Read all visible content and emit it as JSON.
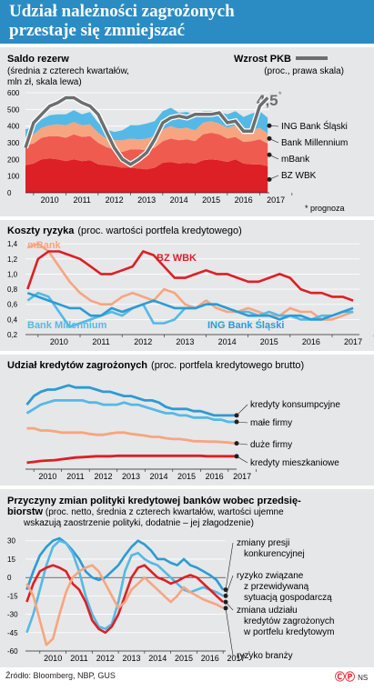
{
  "title_line1": "Udział należności zagrożonych",
  "title_line2": "przestaje się zmniejszać",
  "source": "Źródło: Bloomberg, NBP, GUS",
  "brand_icon": "cp-copyright-icon",
  "brand_suffix": "NS",
  "chart_data": [
    {
      "type": "area",
      "title": "Saldo rezerw",
      "subtitle_line1": "(średnia z czterech kwartałów,",
      "subtitle_line2": "mln zł, skala lewa)",
      "right_title": "Wzrost PKB",
      "right_subtitle": "(proc., prawa skala)",
      "annotation": "4,5",
      "annotation_mark": "*",
      "footnote": "* prognoza",
      "x_ticks": [
        "2010",
        "2011",
        "2012",
        "2013",
        "2014",
        "2015",
        "2016",
        "2017"
      ],
      "y_ticks": [
        0,
        100,
        200,
        300,
        400,
        500,
        600
      ],
      "ylim": [
        0,
        600
      ],
      "colors": {
        "ING Bank Śląski": "#54b9e6",
        "Bank Millennium": "#f7a580",
        "mBank": "#ef5b4f",
        "BZ WBK": "#dd1f26",
        "Wzrost PKB": "#6d6e70"
      },
      "x": [
        2009.75,
        2010,
        2010.25,
        2010.5,
        2010.75,
        2011,
        2011.25,
        2011.5,
        2011.75,
        2012,
        2012.25,
        2012.5,
        2012.75,
        2013,
        2013.25,
        2013.5,
        2013.75,
        2014,
        2014.25,
        2014.5,
        2014.75,
        2015,
        2015.25,
        2015.5,
        2015.75,
        2016,
        2016.25,
        2016.5,
        2016.75,
        2017,
        2017.25
      ],
      "series": [
        {
          "name": "BZ WBK",
          "values": [
            165,
            175,
            200,
            205,
            200,
            190,
            200,
            190,
            195,
            170,
            165,
            160,
            150,
            150,
            145,
            140,
            150,
            180,
            185,
            175,
            180,
            175,
            195,
            200,
            195,
            185,
            200,
            175,
            170,
            170,
            160
          ]
        },
        {
          "name": "mBank",
          "values": [
            120,
            120,
            130,
            135,
            140,
            140,
            150,
            145,
            145,
            130,
            110,
            100,
            95,
            110,
            115,
            115,
            120,
            130,
            140,
            140,
            140,
            135,
            155,
            160,
            155,
            140,
            135,
            130,
            140,
            150,
            135
          ]
        },
        {
          "name": "Bank Millennium",
          "values": [
            55,
            55,
            60,
            65,
            70,
            75,
            75,
            70,
            70,
            60,
            50,
            55,
            70,
            65,
            60,
            70,
            70,
            70,
            75,
            70,
            70,
            65,
            70,
            70,
            65,
            65,
            70,
            60,
            65,
            70,
            60
          ]
        },
        {
          "name": "ING Bank Śląski",
          "values": [
            40,
            45,
            50,
            60,
            60,
            65,
            70,
            65,
            75,
            60,
            55,
            50,
            60,
            80,
            85,
            90,
            90,
            110,
            110,
            95,
            95,
            90,
            70,
            60,
            70,
            80,
            85,
            90,
            100,
            100,
            95
          ]
        },
        {
          "name": "Wzrost PKB",
          "values": [
            1.5,
            3.0,
            3.5,
            4.0,
            4.2,
            4.5,
            4.5,
            4.2,
            4.0,
            3.5,
            2.5,
            1.5,
            0.8,
            0.5,
            0.8,
            1.2,
            2.0,
            3.0,
            3.3,
            3.4,
            3.3,
            3.5,
            3.5,
            3.5,
            3.6,
            3.0,
            3.1,
            2.5,
            2.5,
            4.0,
            4.5
          ]
        }
      ]
    },
    {
      "type": "line",
      "title": "Koszty ryzyka",
      "subtitle": "(proc. wartości portfela kredytowego)",
      "x_ticks": [
        "2010",
        "2011",
        "2012",
        "2013",
        "2014",
        "2015",
        "2016",
        "2017"
      ],
      "y_ticks": [
        "0,2",
        "0,4",
        "0,6",
        "0,8",
        "1,0",
        "1,2",
        "1,4"
      ],
      "ylim": [
        0.2,
        1.45
      ],
      "colors": {
        "mBank": "#f7a580",
        "BZ WBK": "#dd1f26",
        "Bank Millennium": "#54b9e6",
        "ING Bank Śląski": "#2b9bd6"
      },
      "x": [
        2009.75,
        2010,
        2010.25,
        2010.5,
        2010.75,
        2011,
        2011.25,
        2011.5,
        2011.75,
        2012,
        2012.25,
        2012.5,
        2012.75,
        2013,
        2013.25,
        2013.5,
        2013.75,
        2014,
        2014.25,
        2014.5,
        2014.75,
        2015,
        2015.25,
        2015.5,
        2015.75,
        2016,
        2016.25,
        2016.5,
        2016.75,
        2017,
        2017.25,
        2017.5
      ],
      "series": [
        {
          "name": "mBank",
          "values": [
            1.35,
            1.4,
            1.3,
            1.1,
            0.9,
            0.75,
            0.65,
            0.6,
            0.6,
            0.7,
            0.75,
            0.7,
            0.65,
            0.8,
            0.75,
            0.6,
            0.55,
            0.65,
            0.55,
            0.5,
            0.5,
            0.55,
            0.5,
            0.45,
            0.45,
            0.55,
            0.5,
            0.5,
            0.4,
            0.4,
            0.45,
            0.5
          ]
        },
        {
          "name": "BZ WBK",
          "values": [
            0.8,
            1.2,
            1.3,
            1.3,
            1.25,
            1.2,
            1.1,
            1.0,
            1.0,
            1.05,
            1.1,
            1.3,
            1.25,
            1.1,
            0.95,
            0.95,
            1.0,
            1.05,
            1.0,
            1.0,
            0.95,
            0.9,
            0.9,
            0.95,
            1.0,
            0.95,
            0.8,
            0.75,
            0.75,
            0.7,
            0.7,
            0.65
          ]
        },
        {
          "name": "Bank Millennium",
          "values": [
            0.65,
            0.75,
            0.7,
            0.5,
            0.3,
            0.35,
            0.4,
            0.45,
            0.5,
            0.45,
            0.55,
            0.6,
            0.35,
            0.35,
            0.4,
            0.55,
            0.55,
            0.6,
            0.6,
            0.55,
            0.5,
            0.5,
            0.45,
            0.5,
            0.45,
            0.45,
            0.4,
            0.4,
            0.45,
            0.45,
            0.5,
            0.5
          ]
        },
        {
          "name": "ING Bank Śląski",
          "values": [
            0.75,
            0.7,
            0.65,
            0.6,
            0.55,
            0.55,
            0.45,
            0.45,
            0.55,
            0.5,
            0.55,
            0.6,
            0.65,
            0.6,
            0.55,
            0.55,
            0.55,
            0.6,
            0.6,
            0.55,
            0.5,
            0.45,
            0.45,
            0.45,
            0.4,
            0.45,
            0.45,
            0.4,
            0.4,
            0.45,
            0.5,
            0.55
          ]
        }
      ]
    },
    {
      "type": "line",
      "title": "Udział kredytów zagrożonych",
      "subtitle": "(proc. portfela kredytowego brutto)",
      "x_ticks": [
        "2010",
        "2011",
        "2012",
        "2013",
        "2014",
        "2015",
        "2016",
        "2017"
      ],
      "ylim": [
        0,
        22
      ],
      "colors": {
        "kredyty konsumpcyjne": "#2b9bd6",
        "małe firmy": "#54b9e6",
        "duże firmy": "#f7a580",
        "kredyty mieszkaniowe": "#dd1f26"
      },
      "x": [
        2009.75,
        2010,
        2010.25,
        2010.5,
        2010.75,
        2011,
        2011.25,
        2011.5,
        2011.75,
        2012,
        2012.25,
        2012.5,
        2012.75,
        2013,
        2013.25,
        2013.5,
        2013.75,
        2014,
        2014.25,
        2014.5,
        2014.75,
        2015,
        2015.25,
        2015.5,
        2015.75,
        2016,
        2016.25,
        2016.5,
        2016.75,
        2017,
        2017.25
      ],
      "series": [
        {
          "name": "kredyty konsumpcyjne",
          "values": [
            15,
            17,
            18,
            18.5,
            18.5,
            19,
            19.5,
            19,
            19,
            19,
            18.5,
            18,
            18,
            17.5,
            17,
            17,
            16.5,
            16,
            16,
            15.5,
            14.5,
            14,
            14,
            14,
            13.5,
            13.5,
            13,
            12.5,
            12.5,
            12.5,
            12.5
          ]
        },
        {
          "name": "małe firmy",
          "values": [
            13,
            14,
            15,
            15.5,
            16,
            16,
            16,
            16,
            16,
            15.5,
            15.5,
            15,
            15,
            15,
            15.5,
            15,
            15,
            14.5,
            14,
            13.5,
            13,
            13,
            12.5,
            12.5,
            12,
            12,
            12,
            11.5,
            11.5,
            11,
            11
          ]
        },
        {
          "name": "duże firmy",
          "values": [
            9.5,
            9.5,
            9,
            9,
            8.8,
            8.5,
            8.5,
            8.5,
            8.5,
            8.2,
            8,
            8,
            8.3,
            8.5,
            8.5,
            8.2,
            8,
            7.8,
            7.5,
            7.5,
            7.2,
            7,
            7,
            6.8,
            6.5,
            6.5,
            6.4,
            6.4,
            6.3,
            6.2,
            6
          ]
        },
        {
          "name": "kredyty mieszkaniowe",
          "values": [
            1.5,
            1.7,
            1.9,
            2,
            2.1,
            2.3,
            2.5,
            2.7,
            2.8,
            2.9,
            3,
            3,
            3,
            3.1,
            3.1,
            3.1,
            3.1,
            3.1,
            3.1,
            3.1,
            3.1,
            3.1,
            3.1,
            3.1,
            3.1,
            3.1,
            3,
            3,
            3,
            3,
            3
          ]
        }
      ]
    },
    {
      "type": "line",
      "title_line1": "Przyczyny zmian polityki kredytowej banków wobec przedsię-",
      "title_line2": "biorstw",
      "subtitle_line2": " (proc. netto, średnia z czterech kwartałów, wartości ujemne",
      "subtitle_line3": "wskazują zaostrzenie polityki, dodatnie – jej złagodzenie)",
      "x_ticks": [
        "2010",
        "2011",
        "2012",
        "2013",
        "2014",
        "2015",
        "2016",
        "2017"
      ],
      "y_ticks": [
        -60,
        -45,
        -30,
        -15,
        0,
        15,
        30
      ],
      "ylim": [
        -60,
        35
      ],
      "colors": {
        "zmiany presji konkurencyjnej": "#2b9bd6",
        "ryzyko związane z przewidywaną sytuacją gospodarczą": "#54b9e6",
        "zmiana udziału kredytów zagrożonych w portfelu kredytowym": "#dd1f26",
        "ryzyko branży": "#f7a580"
      },
      "labels": [
        [
          "zmiany presji",
          "konkurencyjnej"
        ],
        [
          "ryzyko związane",
          "z przewidywaną",
          "sytuacją gospodarczą"
        ],
        [
          "zmiana udziału",
          "kredytów zagrożonych",
          "w portfelu kredytowym"
        ],
        [
          "ryzyko branży"
        ]
      ],
      "x": [
        2009.5,
        2009.75,
        2010,
        2010.25,
        2010.5,
        2010.75,
        2011,
        2011.25,
        2011.5,
        2011.75,
        2012,
        2012.25,
        2012.5,
        2012.75,
        2013,
        2013.25,
        2013.5,
        2013.75,
        2014,
        2014.25,
        2014.5,
        2014.75,
        2015,
        2015.25,
        2015.5,
        2015.75,
        2016,
        2016.25,
        2016.5,
        2016.75,
        2017
      ],
      "series": [
        {
          "name": "zmiany presji konkurencyjnej",
          "values": [
            -10,
            5,
            18,
            25,
            30,
            32,
            28,
            22,
            15,
            5,
            0,
            -2,
            0,
            5,
            10,
            18,
            25,
            30,
            27,
            22,
            15,
            15,
            12,
            10,
            15,
            10,
            8,
            5,
            2,
            -2,
            -10
          ]
        },
        {
          "name": "ryzyko związane z przewidywaną sytuacją gospodarczą",
          "values": [
            -45,
            -30,
            -10,
            10,
            25,
            30,
            28,
            20,
            5,
            -15,
            -30,
            -40,
            -42,
            -38,
            -20,
            5,
            18,
            20,
            15,
            12,
            10,
            5,
            0,
            -5,
            -10,
            -12,
            -10,
            -8,
            -10,
            -12,
            -15
          ]
        },
        {
          "name": "zmiana udziału kredytów zagrożonych w portfelu kredytowym",
          "values": [
            -20,
            -5,
            5,
            8,
            10,
            8,
            5,
            -5,
            -10,
            -20,
            -35,
            -42,
            -45,
            -40,
            -30,
            -15,
            0,
            8,
            10,
            5,
            0,
            -2,
            -5,
            -3,
            0,
            2,
            0,
            -5,
            -10,
            -15,
            -20
          ]
        },
        {
          "name": "ryzyko branży",
          "values": [
            -5,
            -15,
            -35,
            -55,
            -50,
            -30,
            -12,
            0,
            5,
            8,
            10,
            5,
            -5,
            -15,
            -25,
            -20,
            -10,
            -5,
            0,
            -5,
            -10,
            -15,
            -20,
            -15,
            -8,
            -12,
            -15,
            -18,
            -20,
            -22,
            -25
          ]
        }
      ]
    }
  ]
}
